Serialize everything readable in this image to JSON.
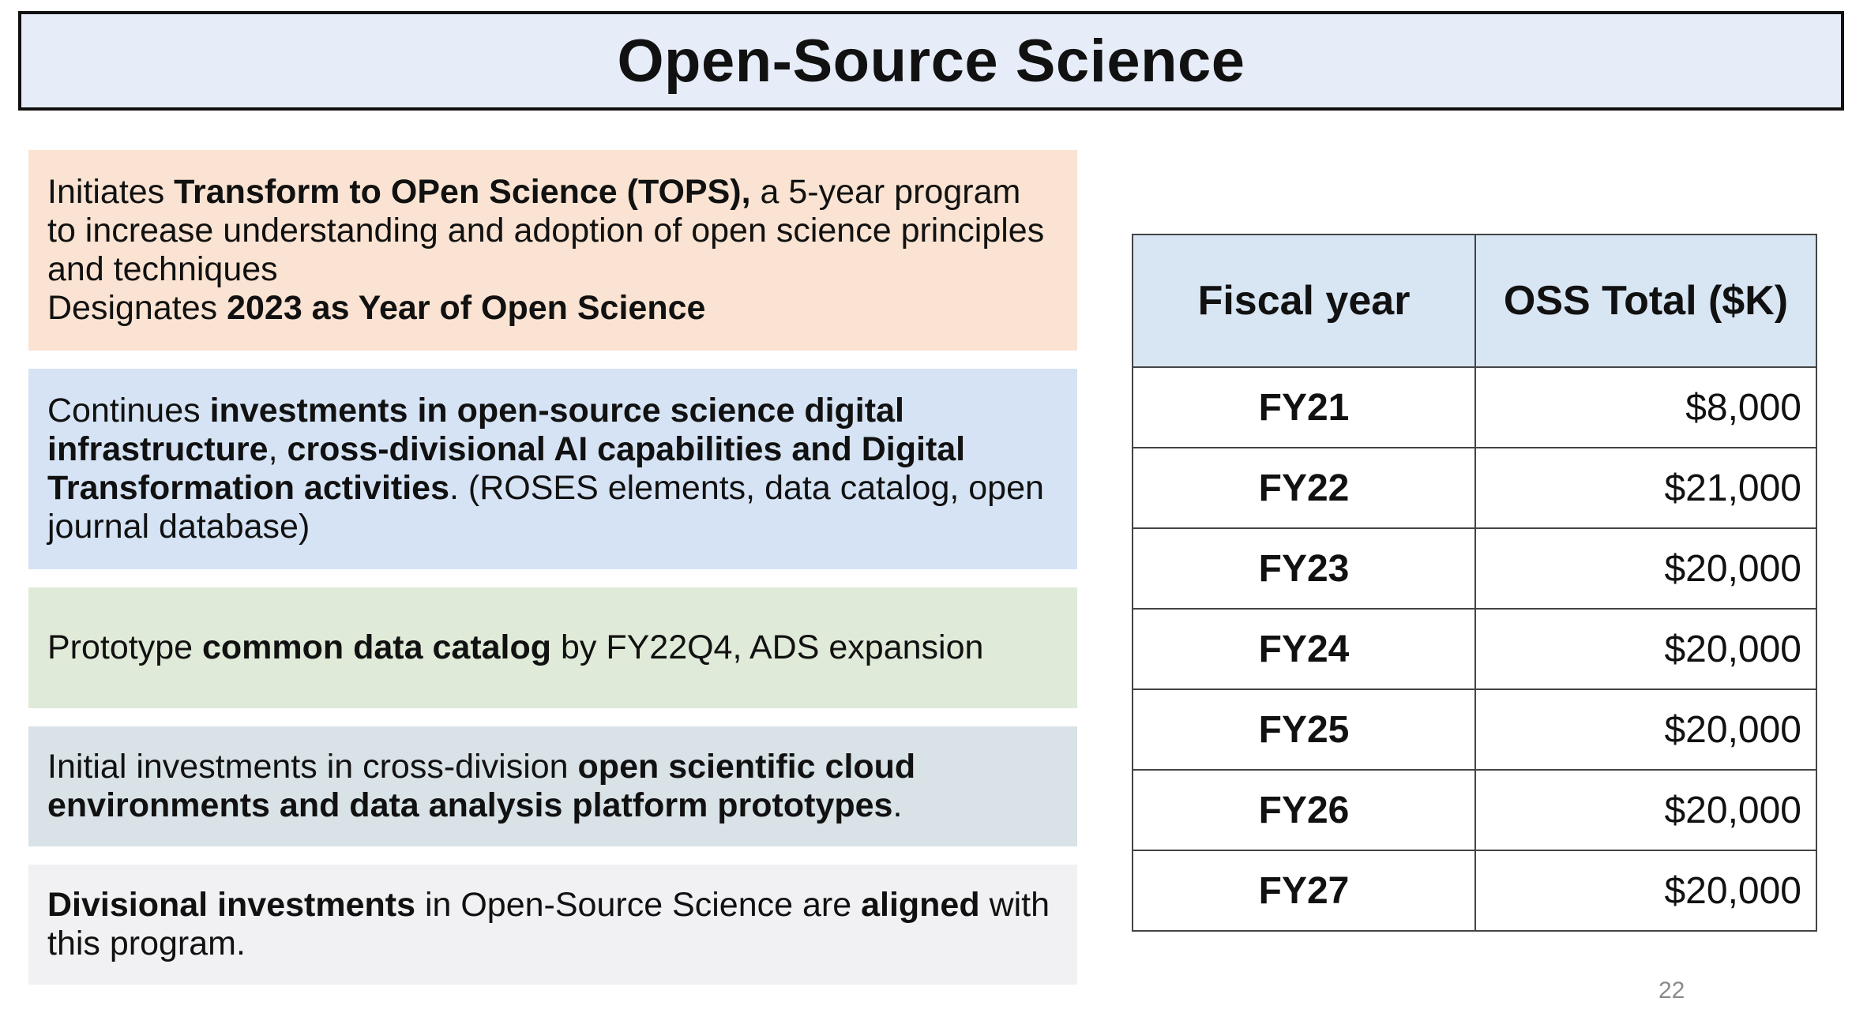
{
  "title": "Open-Source Science",
  "boxes": {
    "tops": {
      "t1": "Initiates ",
      "t2": "Transform to OPen Science (TOPS),",
      "t3": " a 5-year program to increase understanding and adoption of open science principles and techniques",
      "t4": "Designates ",
      "t5": "2023 as Year of Open Science"
    },
    "infra": {
      "t1": "Continues ",
      "t2": "investments in open-source science digital infrastructure",
      "t3": ", ",
      "t4": "cross-divisional AI capabilities and Digital Transformation activities",
      "t5": ". (ROSES elements, data catalog, open journal database)"
    },
    "catalog": {
      "t1": "Prototype ",
      "t2": "common data catalog",
      "t3": " by FY22Q4, ADS expansion"
    },
    "cloud": {
      "t1": "Initial investments in cross-division ",
      "t2": "open scientific cloud environments and data analysis platform prototypes",
      "t3": "."
    },
    "divisional": {
      "t1": "Divisional investments",
      "t2": " in Open-Source Science are ",
      "t3": "aligned",
      "t4": " with this program."
    }
  },
  "table": {
    "headers": [
      "Fiscal year",
      "OSS Total ($K)"
    ],
    "rows": [
      [
        "FY21",
        "$8,000"
      ],
      [
        "FY22",
        "$21,000"
      ],
      [
        "FY23",
        "$20,000"
      ],
      [
        "FY24",
        "$20,000"
      ],
      [
        "FY25",
        "$20,000"
      ],
      [
        "FY26",
        "$20,000"
      ],
      [
        "FY27",
        "$20,000"
      ]
    ]
  },
  "page_number": "22",
  "colors": {
    "title_bg": "#e7edf8",
    "box_tops": "#fae3d2",
    "box_infra": "#d5e3f4",
    "box_catalog": "#dfead8",
    "box_cloud": "#d8e2e7",
    "box_divisional": "#f1f1f3",
    "table_header_bg": "#d8e5f3"
  }
}
